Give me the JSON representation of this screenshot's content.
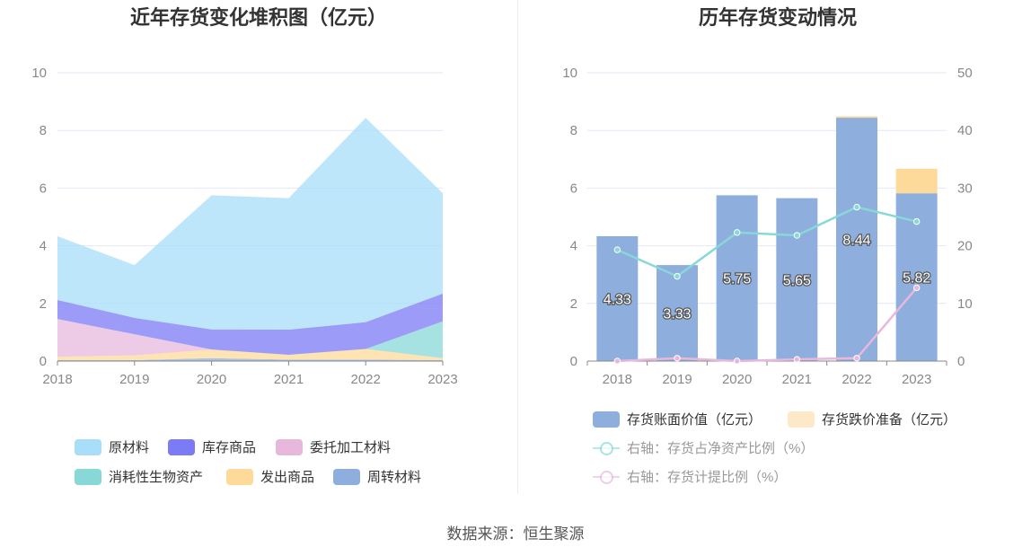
{
  "titles": {
    "left": "近年存货变化堆积图（亿元）",
    "right": "历年存货变动情况"
  },
  "source": "数据来源：恒生聚源",
  "chart_data": [
    {
      "type": "area",
      "stacked": true,
      "title": "近年存货变化堆积图（亿元）",
      "categories": [
        "2018",
        "2019",
        "2020",
        "2021",
        "2022",
        "2023"
      ],
      "ylim": [
        0,
        10
      ],
      "yticks": [
        0,
        2,
        4,
        6,
        8,
        10
      ],
      "grid": true,
      "legend_position": "bottom",
      "series": [
        {
          "name": "周转材料",
          "color": "#8eaedd",
          "values": [
            0.03,
            0.03,
            0.1,
            0.05,
            0.05,
            0.03
          ]
        },
        {
          "name": "发出商品",
          "color": "#fdd99a",
          "values": [
            0.12,
            0.17,
            0.3,
            0.17,
            0.37,
            0.07
          ]
        },
        {
          "name": "消耗性生物资产",
          "color": "#88d8d8",
          "values": [
            0.0,
            0.0,
            0.0,
            0.0,
            0.0,
            1.28
          ]
        },
        {
          "name": "委托加工材料",
          "color": "#e7b8dc",
          "values": [
            1.31,
            0.73,
            0.0,
            0.0,
            0.0,
            0.0
          ]
        },
        {
          "name": "库存商品",
          "color": "#7b7bf5",
          "values": [
            0.66,
            0.57,
            0.7,
            0.87,
            0.93,
            0.96
          ]
        },
        {
          "name": "原材料",
          "color": "#a8defa",
          "values": [
            2.21,
            1.83,
            4.65,
            4.56,
            7.09,
            3.48
          ]
        }
      ]
    },
    {
      "type": "bar",
      "stacked": true,
      "title": "历年存货变动情况",
      "categories": [
        "2018",
        "2019",
        "2020",
        "2021",
        "2022",
        "2023"
      ],
      "ylim": [
        0,
        10
      ],
      "yticks": [
        0,
        2,
        4,
        6,
        8,
        10
      ],
      "y2lim": [
        0,
        50
      ],
      "y2ticks": [
        0,
        10,
        20,
        30,
        40,
        50
      ],
      "grid": true,
      "legend_position": "bottom",
      "series": [
        {
          "name": "存货账面价值（亿元）",
          "kind": "bar",
          "color": "#8eaedd",
          "legend_color": "#8eaedd",
          "values": [
            4.33,
            3.33,
            5.75,
            5.65,
            8.44,
            5.82
          ],
          "labels": [
            "4.33",
            "3.33",
            "5.75",
            "5.65",
            "8.44",
            "5.82"
          ]
        },
        {
          "name": "存货跌价准备（亿元）",
          "kind": "bar",
          "color": "#fdd99a",
          "legend_color": "#fde9c8",
          "values": [
            0.0,
            0.0,
            0.0,
            0.0,
            0.05,
            0.85
          ]
        },
        {
          "name": "右轴：存货占净资产比例（%）",
          "kind": "line",
          "axis": "right",
          "color": "#88d8d8",
          "values": [
            19.3,
            14.7,
            22.3,
            21.8,
            26.7,
            24.2
          ]
        },
        {
          "name": "右轴：存货计提比例（%）",
          "kind": "line",
          "axis": "right",
          "color": "#e7b8dc",
          "values": [
            0.0,
            0.5,
            0.0,
            0.3,
            0.5,
            12.7
          ]
        }
      ]
    }
  ]
}
